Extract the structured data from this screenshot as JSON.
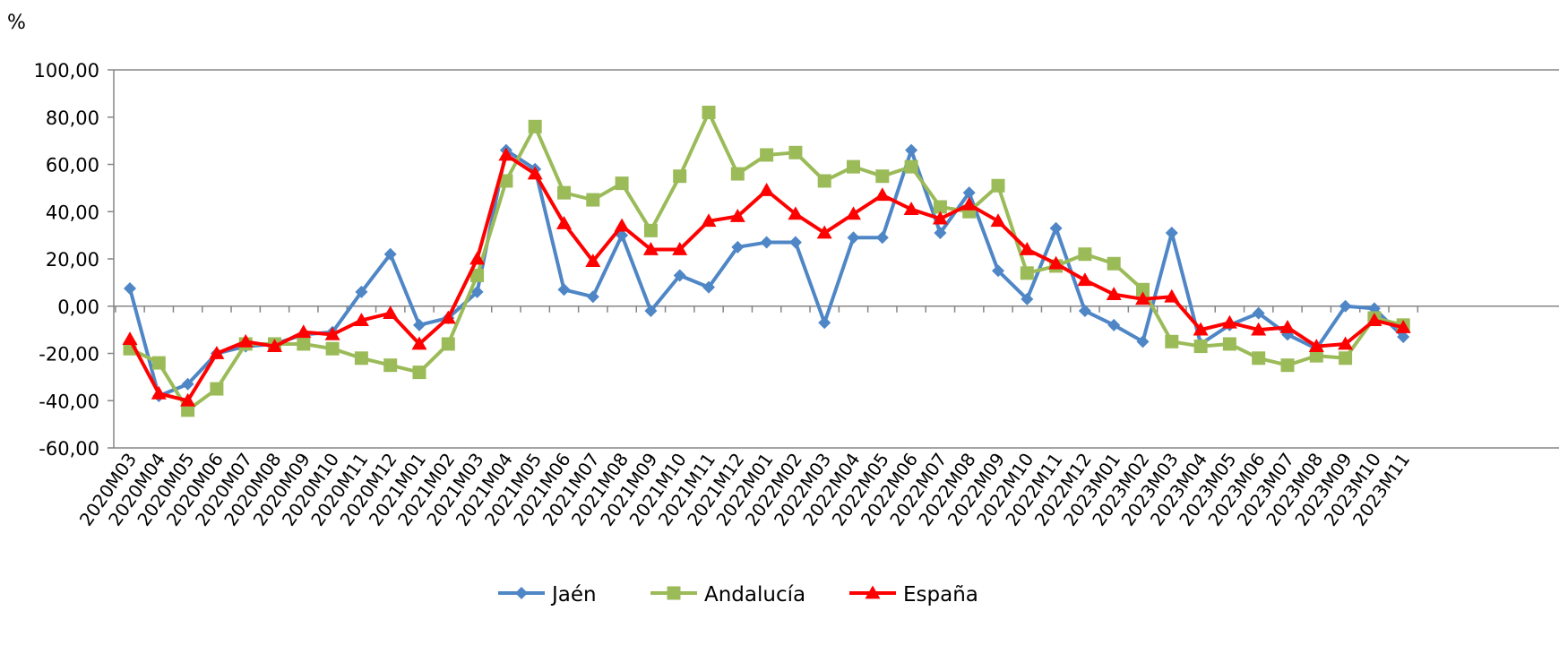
{
  "chart_data": {
    "type": "line",
    "unit_label": "%",
    "ylim": [
      -60,
      100
    ],
    "y_ticks": [
      "100,00",
      "80,00",
      "60,00",
      "40,00",
      "20,00",
      "0,00",
      "-20,00",
      "-40,00",
      "-60,00"
    ],
    "y_tick_values": [
      100,
      80,
      60,
      40,
      20,
      0,
      -20,
      -40,
      -60
    ],
    "grid": false,
    "legend_position": "bottom",
    "categories": [
      "2020M03",
      "2020M04",
      "2020M05",
      "2020M06",
      "2020M07",
      "2020M08",
      "2020M09",
      "2020M10",
      "2020M11",
      "2020M12",
      "2021M01",
      "2021M02",
      "2021M03",
      "2021M04",
      "2021M05",
      "2021M06",
      "2021M07",
      "2021M08",
      "2021M09",
      "2021M10",
      "2021M11",
      "2021M12",
      "2022M01",
      "2022M02",
      "2022M03",
      "2022M04",
      "2022M05",
      "2022M06",
      "2022M07",
      "2022M08",
      "2022M09",
      "2022M10",
      "2022M11",
      "2022M12",
      "2023M01",
      "2023M02",
      "2023M03",
      "2023M04",
      "2023M05",
      "2023M06",
      "2023M07",
      "2023M08",
      "2023M09",
      "2023M10",
      "2023M11"
    ],
    "series": [
      {
        "name": "Jaén",
        "color": "#4f86c6",
        "marker": "diamond",
        "values": [
          7.5,
          -38,
          -33,
          -20,
          -17,
          -16,
          -12,
          -11,
          6,
          22,
          -8,
          -5,
          6,
          66,
          58,
          7,
          4,
          30,
          -2,
          13,
          8,
          25,
          27,
          27,
          -7,
          29,
          29,
          66,
          31,
          48,
          15,
          3,
          33,
          -2,
          -8,
          -15,
          31,
          -16,
          -8,
          -3,
          -12,
          -18,
          0,
          -1,
          -13
        ]
      },
      {
        "name": "Andalucía",
        "color": "#9bbb59",
        "marker": "square",
        "values": [
          -18,
          -24,
          -44,
          -35,
          -16,
          -16,
          -16,
          -18,
          -22,
          -25,
          -28,
          -16,
          13,
          53,
          76,
          48,
          45,
          52,
          32,
          55,
          82,
          56,
          64,
          65,
          53,
          59,
          55,
          59,
          42,
          40,
          51,
          14,
          17,
          22,
          18,
          7,
          -15,
          -17,
          -16,
          -22,
          -25,
          -21,
          -22,
          -5,
          -8
        ]
      },
      {
        "name": "España",
        "color": "#ff0000",
        "marker": "triangle",
        "values": [
          -14,
          -37,
          -40,
          -20,
          -15,
          -17,
          -11,
          -12,
          -6,
          -3,
          -16,
          -5,
          20,
          64,
          56,
          35,
          19,
          34,
          24,
          24,
          36,
          38,
          49,
          39,
          31,
          39,
          47,
          41,
          37,
          43,
          36,
          24,
          18,
          11,
          5,
          3,
          4,
          -10,
          -7,
          -10,
          -9,
          -17,
          -16,
          -6,
          -9
        ]
      }
    ]
  }
}
